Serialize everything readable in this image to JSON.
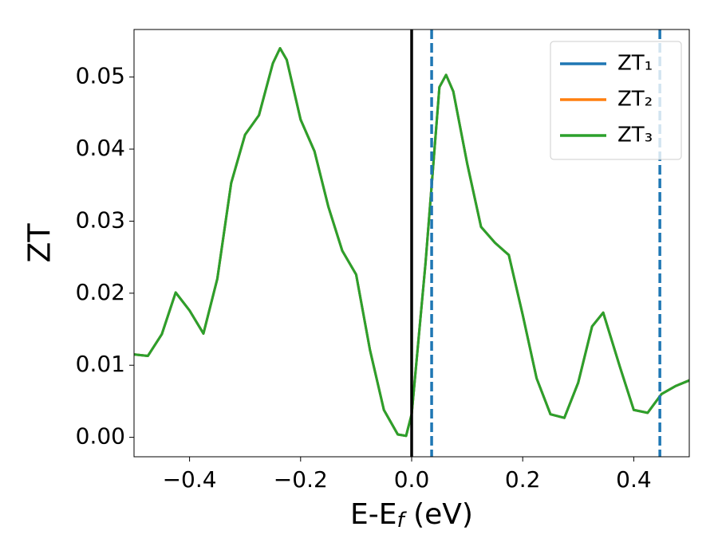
{
  "chart_data": {
    "type": "line",
    "ylabel": "ZT",
    "xlabel": [
      "E-E",
      "f",
      " (eV)"
    ],
    "x": [
      -0.5,
      -0.475,
      -0.45,
      -0.425,
      -0.4,
      -0.375,
      -0.35,
      -0.325,
      -0.3,
      -0.275,
      -0.25,
      -0.237,
      -0.225,
      -0.2,
      -0.175,
      -0.15,
      -0.125,
      -0.1,
      -0.075,
      -0.05,
      -0.025,
      -0.01,
      0,
      0.025,
      0.05,
      0.062,
      0.075,
      0.1,
      0.125,
      0.15,
      0.175,
      0.2,
      0.225,
      0.25,
      0.275,
      0.3,
      0.325,
      0.345,
      0.375,
      0.4,
      0.425,
      0.45,
      0.475,
      0.5
    ],
    "series": [
      {
        "name": "ZT₁",
        "color": "#1f77b4",
        "values": [
          0.0115,
          0.0113,
          0.0143,
          0.0201,
          0.0176,
          0.0144,
          0.022,
          0.0353,
          0.042,
          0.0447,
          0.0519,
          0.054,
          0.0524,
          0.0441,
          0.0397,
          0.032,
          0.0259,
          0.0226,
          0.0121,
          0.0038,
          0.0004,
          0.0002,
          0.0032,
          0.0242,
          0.0486,
          0.0503,
          0.048,
          0.038,
          0.0292,
          0.027,
          0.0253,
          0.017,
          0.0082,
          0.0032,
          0.0027,
          0.0076,
          0.0154,
          0.0173,
          0.0098,
          0.0038,
          0.0034,
          0.006,
          0.0071,
          0.0079
        ]
      },
      {
        "name": "ZT₂",
        "color": "#ff7f0e",
        "values": [
          0.0115,
          0.0113,
          0.0143,
          0.0201,
          0.0176,
          0.0144,
          0.022,
          0.0353,
          0.042,
          0.0447,
          0.0519,
          0.054,
          0.0524,
          0.0441,
          0.0397,
          0.032,
          0.0259,
          0.0226,
          0.0121,
          0.0038,
          0.0004,
          0.0002,
          0.0032,
          0.0242,
          0.0486,
          0.0503,
          0.048,
          0.038,
          0.0292,
          0.027,
          0.0253,
          0.017,
          0.0082,
          0.0032,
          0.0027,
          0.0076,
          0.0154,
          0.0173,
          0.0098,
          0.0038,
          0.0034,
          0.006,
          0.0071,
          0.0079
        ]
      },
      {
        "name": "ZT₃",
        "color": "#2ca02c",
        "values": [
          0.0115,
          0.0113,
          0.0143,
          0.0201,
          0.0176,
          0.0144,
          0.022,
          0.0353,
          0.042,
          0.0447,
          0.0519,
          0.054,
          0.0524,
          0.0441,
          0.0397,
          0.032,
          0.0259,
          0.0226,
          0.0121,
          0.0038,
          0.0004,
          0.0002,
          0.0032,
          0.0242,
          0.0486,
          0.0503,
          0.048,
          0.038,
          0.0292,
          0.027,
          0.0253,
          0.017,
          0.0082,
          0.0032,
          0.0027,
          0.0076,
          0.0154,
          0.0173,
          0.0098,
          0.0038,
          0.0034,
          0.006,
          0.0071,
          0.0079
        ]
      }
    ],
    "vlines": [
      {
        "x": 0,
        "color": "#000000",
        "dashed": false
      },
      {
        "x": 0.036,
        "color": "#1f77b4",
        "dashed": true
      },
      {
        "x": 0.447,
        "color": "#1f77b4",
        "dashed": true
      }
    ],
    "xlim": [
      -0.5,
      0.5
    ],
    "ylim": [
      -0.0027,
      0.0566
    ],
    "xticks": [
      {
        "value": -0.4,
        "label": "−0.4"
      },
      {
        "value": -0.2,
        "label": "−0.2"
      },
      {
        "value": 0,
        "label": "0.0"
      },
      0.2,
      0.4
    ],
    "yticks": [
      {
        "value": 0,
        "label": "0.00"
      },
      {
        "value": 0.01,
        "label": "0.01"
      },
      {
        "value": 0.02,
        "label": "0.02"
      },
      {
        "value": 0.03,
        "label": "0.03"
      },
      {
        "value": 0.04,
        "label": "0.04"
      },
      {
        "value": 0.05,
        "label": "0.05"
      }
    ],
    "legend": "upper right"
  }
}
